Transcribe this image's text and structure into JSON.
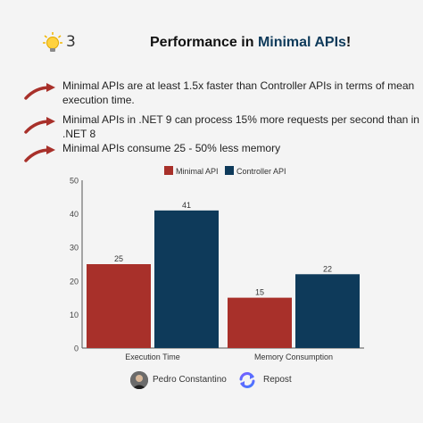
{
  "header": {
    "page_number": "3",
    "title_prefix": "Performance in ",
    "title_accent": "Minimal APIs",
    "title_suffix": "!"
  },
  "points": [
    {
      "line1": "Minimal APIs are at least 1.5x faster than Controller APIs in terms of mean",
      "line2": "execution time."
    },
    {
      "line1": "Minimal APIs in .NET 9 can process 15% more requests per second than in",
      "line2": ".NET 8"
    },
    {
      "line1": "Minimal APIs consume 25 - 50% less memory",
      "line2": ""
    }
  ],
  "chart_data": {
    "type": "bar",
    "categories": [
      "Execution Time",
      "Memory Consumption"
    ],
    "series": [
      {
        "name": "Minimal API",
        "values": [
          25,
          15
        ],
        "color": "#a8302a"
      },
      {
        "name": "Controller API",
        "values": [
          41,
          22
        ],
        "color": "#0e3a5a"
      }
    ],
    "ylim": [
      0,
      50
    ],
    "yticks": [
      0,
      10,
      20,
      30,
      40,
      50
    ],
    "legend_position": "top-center",
    "grid": false,
    "data_labels": true
  },
  "footer": {
    "author": "Pedro Constantino",
    "repost_label": "Repost"
  },
  "colors": {
    "accent": "#0e3a5a",
    "arrow": "#a8302a"
  },
  "icons": {
    "bulb": "lightbulb-icon",
    "arrow": "curved-arrow-icon",
    "repost": "repost-icon"
  }
}
